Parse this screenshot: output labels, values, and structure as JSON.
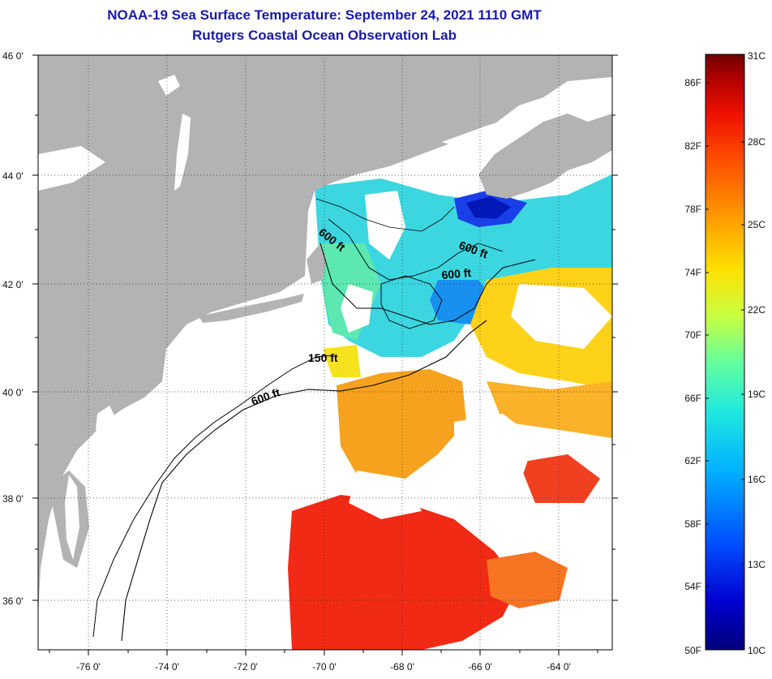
{
  "title_line_1": "NOAA-19 Sea Surface Temperature:  September 24, 2021 1110 GMT",
  "title_line_2": "Rutgers Coastal Ocean Observation Lab",
  "map": {
    "lat_labels": [
      "46 0'",
      "44 0'",
      "42 0'",
      "40 0'",
      "38 0'",
      "36 0'"
    ],
    "lon_labels": [
      "-76 0'",
      "-74 0'",
      "-72 0'",
      "-70 0'",
      "-68 0'",
      "-66 0'",
      "-64 0'"
    ],
    "contour_labels": [
      "600 ft",
      "600 ft",
      "600 ft",
      "150 ft",
      "600 ft"
    ],
    "colors": {
      "land": "#b3b3b3",
      "cloud": "#ffffff",
      "grid": "#333333"
    }
  },
  "colorbar": {
    "fahrenheit_labels": [
      "86F",
      "82F",
      "78F",
      "74F",
      "70F",
      "66F",
      "62F",
      "58F",
      "54F",
      "50F"
    ],
    "celsius_labels": [
      "31C",
      "28C",
      "25C",
      "22C",
      "19C",
      "16C",
      "13C",
      "10C"
    ],
    "gradient_colors": [
      "#00007a",
      "#0000d0",
      "#0050ff",
      "#00b0ff",
      "#20e8e0",
      "#60ffa0",
      "#c8ff40",
      "#ffe000",
      "#ffa000",
      "#ff5000",
      "#ee1000",
      "#b00000",
      "#700000"
    ]
  }
}
